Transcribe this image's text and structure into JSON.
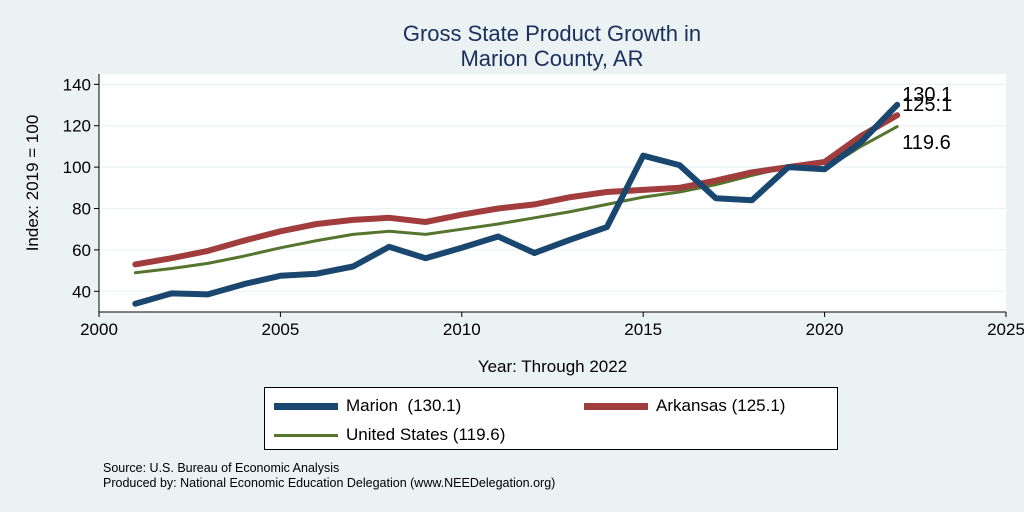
{
  "chart_data": {
    "type": "line",
    "title": [
      "Gross State Product Growth in",
      "Marion County, AR"
    ],
    "xlabel": "Year: Through 2022",
    "ylabel": "Index: 2019 = 100",
    "xlim": [
      2000,
      2025
    ],
    "ylim": [
      30,
      145
    ],
    "xticks": [
      2000,
      2005,
      2010,
      2015,
      2020,
      2025
    ],
    "yticks": [
      40,
      60,
      80,
      100,
      120,
      140
    ],
    "x": [
      2001,
      2002,
      2003,
      2004,
      2005,
      2006,
      2007,
      2008,
      2009,
      2010,
      2011,
      2012,
      2013,
      2014,
      2015,
      2016,
      2017,
      2018,
      2019,
      2020,
      2021,
      2022
    ],
    "series": [
      {
        "name": "Marion",
        "color": "#1a476f",
        "values": [
          34,
          39,
          38.5,
          43.5,
          47.5,
          48.5,
          52,
          61.5,
          56,
          61,
          66.5,
          58.5,
          65,
          71,
          105.5,
          101,
          85,
          84,
          100,
          99,
          112,
          130.1
        ],
        "end_label": "130.1"
      },
      {
        "name": "Arkansas",
        "color": "#a13d3d",
        "values": [
          53,
          56,
          59.5,
          64.5,
          69,
          72.5,
          74.5,
          75.5,
          73.5,
          77,
          80,
          82,
          85.5,
          88,
          89,
          90,
          93.5,
          97.5,
          100,
          102.5,
          115,
          125.1
        ],
        "end_label": "125.1"
      },
      {
        "name": "United States",
        "color": "#55752f",
        "values": [
          49,
          51,
          53.5,
          57,
          61,
          64.5,
          67.5,
          69,
          67.5,
          70,
          72.5,
          75.5,
          78.5,
          82,
          85.5,
          88,
          91.5,
          96,
          100,
          99,
          110,
          119.6
        ],
        "end_label": "119.6"
      }
    ],
    "legend": {
      "position": "bottom",
      "items": [
        "Marion  (130.1)",
        "Arkansas (125.1)",
        "United States (119.6)"
      ]
    },
    "grid": true
  },
  "footer": {
    "source": "Source: U.S. Bureau of Economic Analysis",
    "produced": "Produced by: National Economic Education Delegation (www.NEEDelegation.org)"
  }
}
